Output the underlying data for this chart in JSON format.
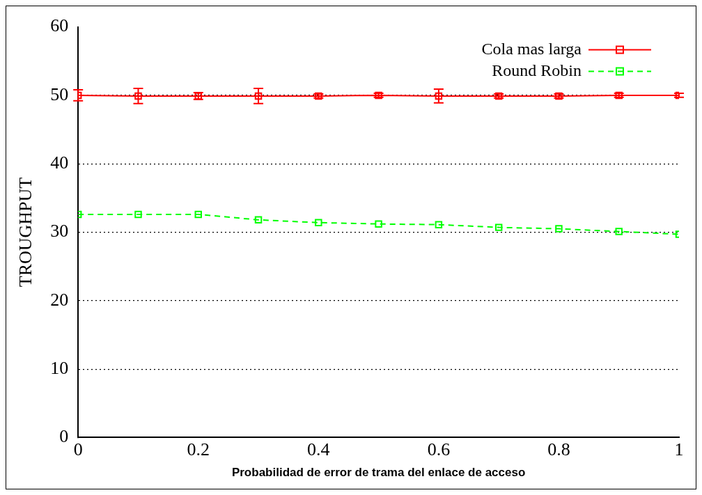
{
  "chart_data": {
    "type": "line",
    "xlabel": "Probabilidad de error de trama del enlace de acceso",
    "ylabel": "TROUGHPUT",
    "x": [
      0,
      0.1,
      0.2,
      0.3,
      0.4,
      0.5,
      0.6,
      0.7,
      0.8,
      0.9,
      1
    ],
    "series": [
      {
        "name": "Cola mas larga",
        "color": "#ff0000",
        "line_style": "solid",
        "values": [
          50,
          49.9,
          49.9,
          49.9,
          49.9,
          50,
          49.9,
          49.9,
          49.9,
          50,
          50
        ],
        "errors": [
          0.8,
          1.1,
          0.5,
          1.1,
          0.3,
          0.3,
          1.0,
          0.3,
          0.3,
          0.3,
          0.3
        ]
      },
      {
        "name": "Round Robin",
        "color": "#00ff00",
        "line_style": "dashed",
        "values": [
          32.6,
          32.6,
          32.6,
          31.8,
          31.4,
          31.2,
          31.1,
          30.7,
          30.5,
          30.1,
          29.7
        ]
      }
    ],
    "xlim": [
      0,
      1
    ],
    "xticks": [
      0,
      0.2,
      0.4,
      0.6,
      0.8,
      1
    ],
    "ylim": [
      0,
      60
    ],
    "yticks": [
      0,
      10,
      20,
      30,
      40,
      50,
      60
    ],
    "grid": "y",
    "legend": "top right",
    "marker": "square"
  }
}
